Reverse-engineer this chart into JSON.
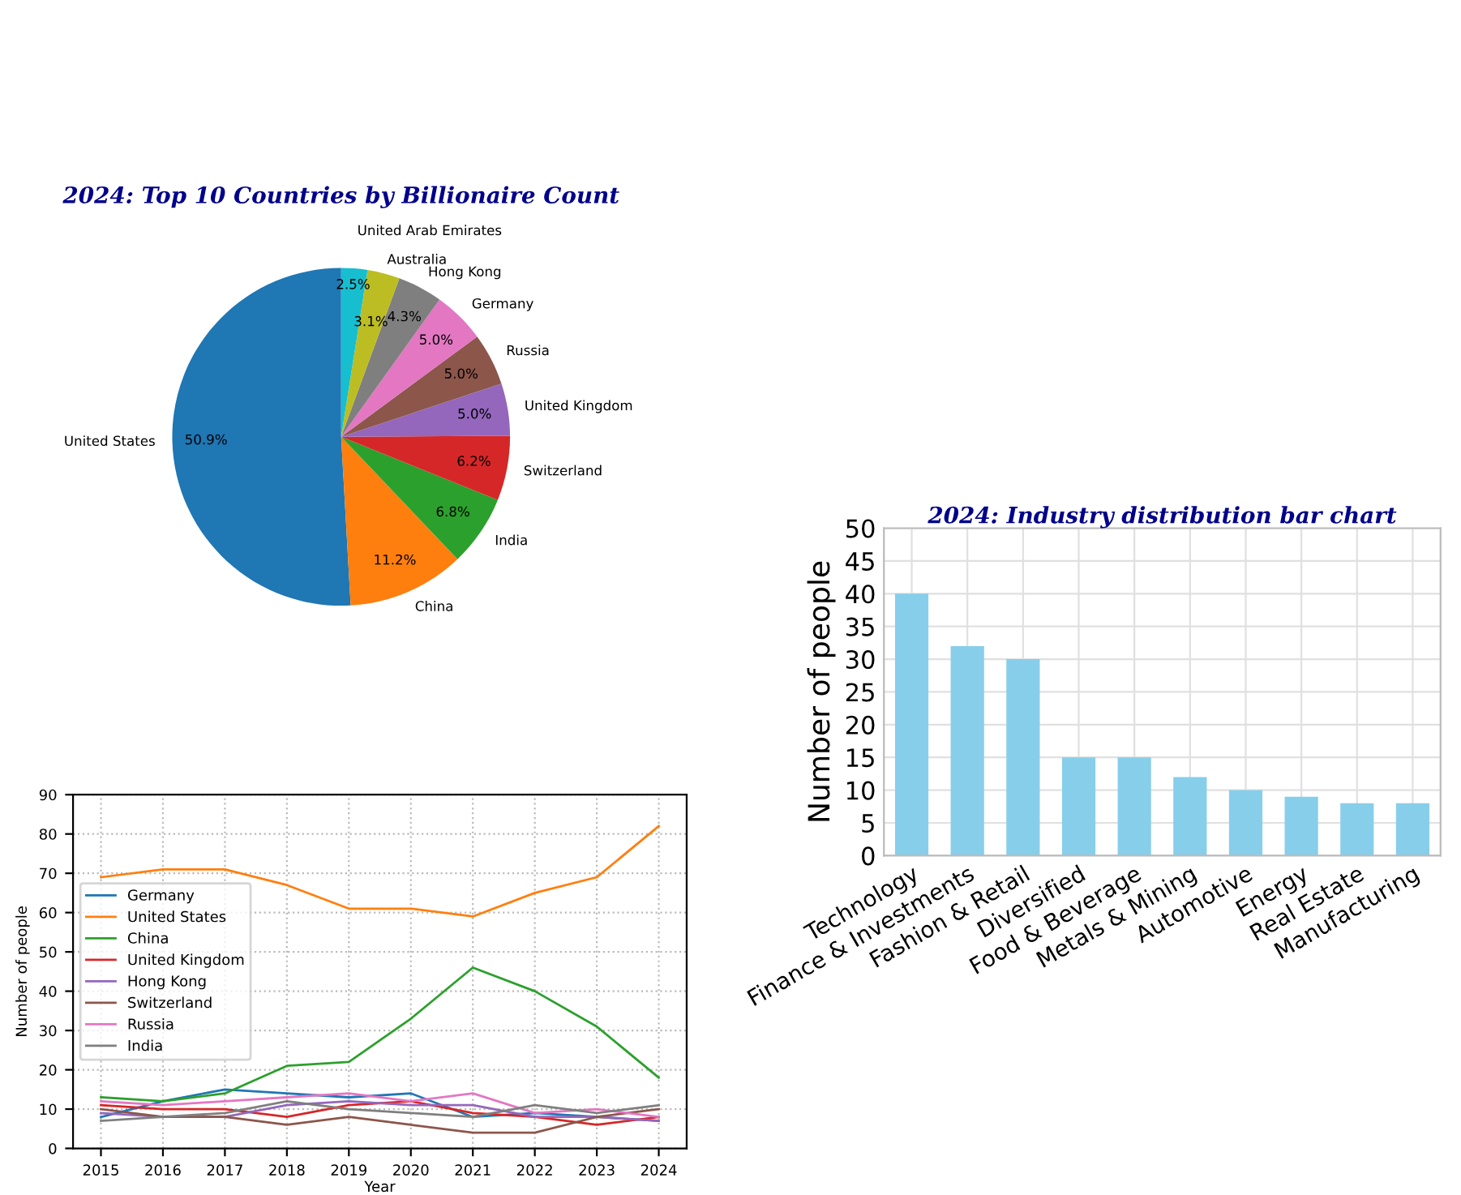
{
  "chart_data": [
    {
      "type": "pie",
      "title": "2024: Top 10 Countries by Billionaire Count",
      "categories": [
        "United States",
        "China",
        "India",
        "Switzerland",
        "United Kingdom",
        "Russia",
        "Germany",
        "Hong Kong",
        "Australia",
        "United Arab Emirates"
      ],
      "values": [
        50.9,
        11.2,
        6.8,
        6.2,
        5.0,
        5.0,
        5.0,
        4.3,
        3.1,
        2.5
      ],
      "value_labels": [
        "50.9%",
        "11.2%",
        "6.8%",
        "6.2%",
        "5.0%",
        "5.0%",
        "5.0%",
        "4.3%",
        "3.1%",
        "2.5%"
      ],
      "colors": [
        "#1f77b4",
        "#ff7f0e",
        "#2ca02c",
        "#d62728",
        "#9467bd",
        "#8c564b",
        "#e377c2",
        "#7f7f7f",
        "#bcbd22",
        "#17becf"
      ]
    },
    {
      "type": "line",
      "xlabel": "Year",
      "ylabel": "Number of people",
      "grid": true,
      "line_style": "solid",
      "legend": "left",
      "x": [
        2015,
        2016,
        2017,
        2018,
        2019,
        2020,
        2021,
        2022,
        2023,
        2024
      ],
      "xlim": [
        2014.55,
        2024.45
      ],
      "xticks": [
        2015,
        2016,
        2017,
        2018,
        2019,
        2020,
        2021,
        2022,
        2023,
        2024
      ],
      "ylim": [
        0,
        90
      ],
      "yticks": [
        0,
        10,
        20,
        30,
        40,
        50,
        60,
        70,
        80,
        90
      ],
      "series": [
        {
          "name": "Germany",
          "color": "#1f77b4",
          "values": [
            8,
            12,
            15,
            14,
            13,
            14,
            8,
            9,
            8,
            7
          ]
        },
        {
          "name": "United States",
          "color": "#ff7f0e",
          "values": [
            69,
            71,
            71,
            67,
            61,
            61,
            59,
            65,
            69,
            82
          ]
        },
        {
          "name": "China",
          "color": "#2ca02c",
          "values": [
            13,
            12,
            14,
            21,
            22,
            33,
            46,
            40,
            31,
            18
          ]
        },
        {
          "name": "United Kingdom",
          "color": "#d62728",
          "values": [
            11,
            10,
            10,
            8,
            11,
            12,
            9,
            8,
            6,
            8
          ]
        },
        {
          "name": "Hong Kong",
          "color": "#9467bd",
          "values": [
            9,
            8,
            8,
            11,
            12,
            11,
            11,
            8,
            8,
            7
          ]
        },
        {
          "name": "Switzerland",
          "color": "#8c564b",
          "values": [
            10,
            8,
            8,
            6,
            8,
            6,
            4,
            4,
            8,
            10
          ]
        },
        {
          "name": "Russia",
          "color": "#e377c2",
          "values": [
            12,
            11,
            12,
            13,
            14,
            12,
            14,
            9,
            10,
            8
          ]
        },
        {
          "name": "India",
          "color": "#7f7f7f",
          "values": [
            7,
            8,
            9,
            12,
            10,
            9,
            8,
            11,
            9,
            11
          ]
        }
      ]
    },
    {
      "type": "bar",
      "title": "2024: Industry distribution bar chart",
      "ylabel": "Number of people",
      "grid": true,
      "categories": [
        "Technology",
        "Finance & Investments",
        "Fashion & Retail",
        "Diversified",
        "Food & Beverage",
        "Metals & Mining",
        "Automotive",
        "Energy",
        "Real Estate",
        "Manufacturing"
      ],
      "values": [
        40,
        32,
        30,
        15,
        15,
        12,
        10,
        9,
        8,
        8
      ],
      "color": "#87ceeb",
      "ylim": [
        0,
        50
      ],
      "yticks": [
        0,
        5,
        10,
        15,
        20,
        25,
        30,
        35,
        40,
        45,
        50
      ]
    }
  ]
}
